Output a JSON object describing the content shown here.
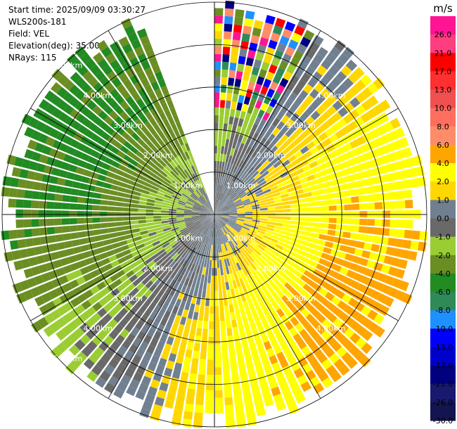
{
  "header": {
    "start_time": "Start time: 2025/09/09 03:30:27",
    "instrument": "WLS200s-181",
    "field": "Field: VEL",
    "elevation": "Elevation(deg): 35.00",
    "nrays": "NRays: 115"
  },
  "chart_data": {
    "type": "heatmap",
    "projection": "polar-ppi",
    "field": "VEL",
    "elevation_deg": 35.0,
    "n_rays": 115,
    "range_max_km": 5.0,
    "range_rings_km": [
      1,
      2,
      3,
      4,
      5
    ],
    "ring_labels": [
      "1.00km",
      "2.00km",
      "3.00km",
      "4.00km",
      "5.00km"
    ],
    "azimuth_gap_deg": [
      340,
      360
    ],
    "velocity_pattern": {
      "units": "m/s",
      "toward_radar_azimuth_deg": 300,
      "away_radar_azimuth_deg": 120,
      "max_abs_velocity_far_range": 4.5,
      "noisy_sector_deg": [
        0,
        30
      ],
      "noisy_sector_min_range_km": 2.5
    },
    "colorbar": {
      "units": "m/s",
      "ticks": [
        "26.0",
        "21.0",
        "17.0",
        "13.0",
        "10.0",
        "8.0",
        "6.0",
        "4.0",
        "2.0",
        "1.0",
        "0.0",
        "-1.0",
        "-2.0",
        "-4.0",
        "-6.0",
        "-8.0",
        "-10.0",
        "-13.0",
        "-17.0",
        "-21.0",
        "-26.0",
        "-30.0"
      ],
      "boundaries": [
        30,
        26,
        21,
        17,
        13,
        10,
        8,
        6,
        4,
        2,
        1,
        0,
        -1,
        -2,
        -4,
        -6,
        -8,
        -10,
        -13,
        -17,
        -21,
        -26,
        -30
      ],
      "colors": [
        "#ff1493",
        "#ff3d7f",
        "#ff0000",
        "#ff3030",
        "#f05050",
        "#ff6e5e",
        "#ff8c69",
        "#ffa500",
        "#ffff00",
        "#ffd700",
        "#708090",
        "#696969",
        "#9acd32",
        "#6b8e23",
        "#228b22",
        "#2e8b57",
        "#1e90ff",
        "#0000ff",
        "#0000cd",
        "#000080",
        "#191970",
        "#141450"
      ]
    }
  }
}
